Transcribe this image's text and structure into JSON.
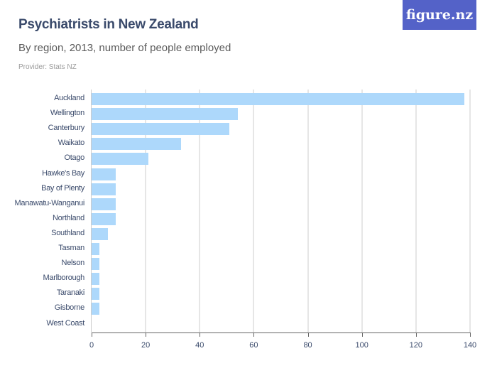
{
  "header": {
    "title": "Psychiatrists in New Zealand",
    "subtitle": "By region, 2013, number of people employed",
    "provider": "Provider: Stats NZ",
    "logo": "figure.nz"
  },
  "colors": {
    "bar": "#add8fb",
    "title": "#3a4a6b",
    "logo_bg": "#5462c8"
  },
  "chart_data": {
    "type": "bar",
    "orientation": "horizontal",
    "title": "Psychiatrists in New Zealand",
    "subtitle": "By region, 2013, number of people employed",
    "xlabel": "",
    "ylabel": "",
    "xlim": [
      0,
      140
    ],
    "grid": true,
    "categories": [
      "Auckland",
      "Wellington",
      "Canterbury",
      "Waikato",
      "Otago",
      "Hawke's Bay",
      "Bay of Plenty",
      "Manawatu-Wanganui",
      "Northland",
      "Southland",
      "Tasman",
      "Nelson",
      "Marlborough",
      "Taranaki",
      "Gisborne",
      "West Coast"
    ],
    "values": [
      138,
      54,
      51,
      33,
      21,
      9,
      9,
      9,
      9,
      6,
      3,
      3,
      3,
      3,
      3,
      0
    ],
    "ticks": [
      "0",
      "20",
      "40",
      "60",
      "80",
      "100",
      "120",
      "140"
    ]
  }
}
